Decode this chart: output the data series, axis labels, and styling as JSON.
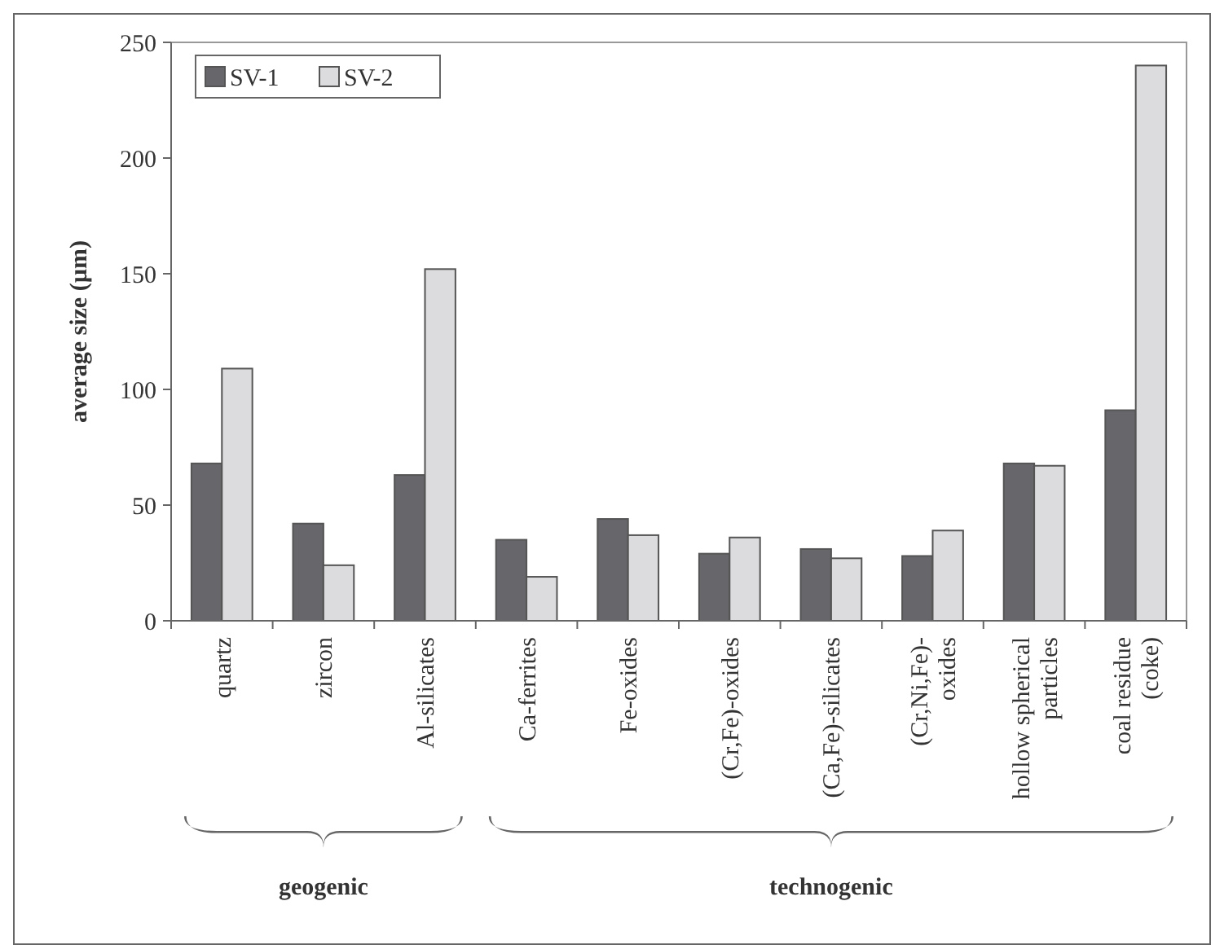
{
  "chart_data": {
    "type": "bar",
    "ylabel": "average size (µm)",
    "categories": [
      "quartz",
      "zircon",
      "Al-silicates",
      "Ca-ferrites",
      "Fe-oxides",
      "(Cr,Fe)-oxides",
      "(Ca,Fe)-silicates",
      "(Cr,Ni,Fe)-\noxides",
      "hollow spherical\nparticles",
      "coal residue\n(coke)"
    ],
    "series": [
      {
        "name": "SV-1",
        "color": "#67676b",
        "values": [
          68,
          42,
          63,
          35,
          44,
          29,
          31,
          28,
          68,
          91
        ]
      },
      {
        "name": "SV-2",
        "color": "#dcdcde",
        "values": [
          109,
          24,
          152,
          19,
          37,
          36,
          27,
          39,
          67,
          240
        ]
      }
    ],
    "ylim": [
      0,
      250
    ],
    "yticks": [
      0,
      50,
      100,
      150,
      200,
      250
    ],
    "legend": "top left",
    "grid": false,
    "annotations": [
      "geogenic",
      "technogenic"
    ]
  }
}
